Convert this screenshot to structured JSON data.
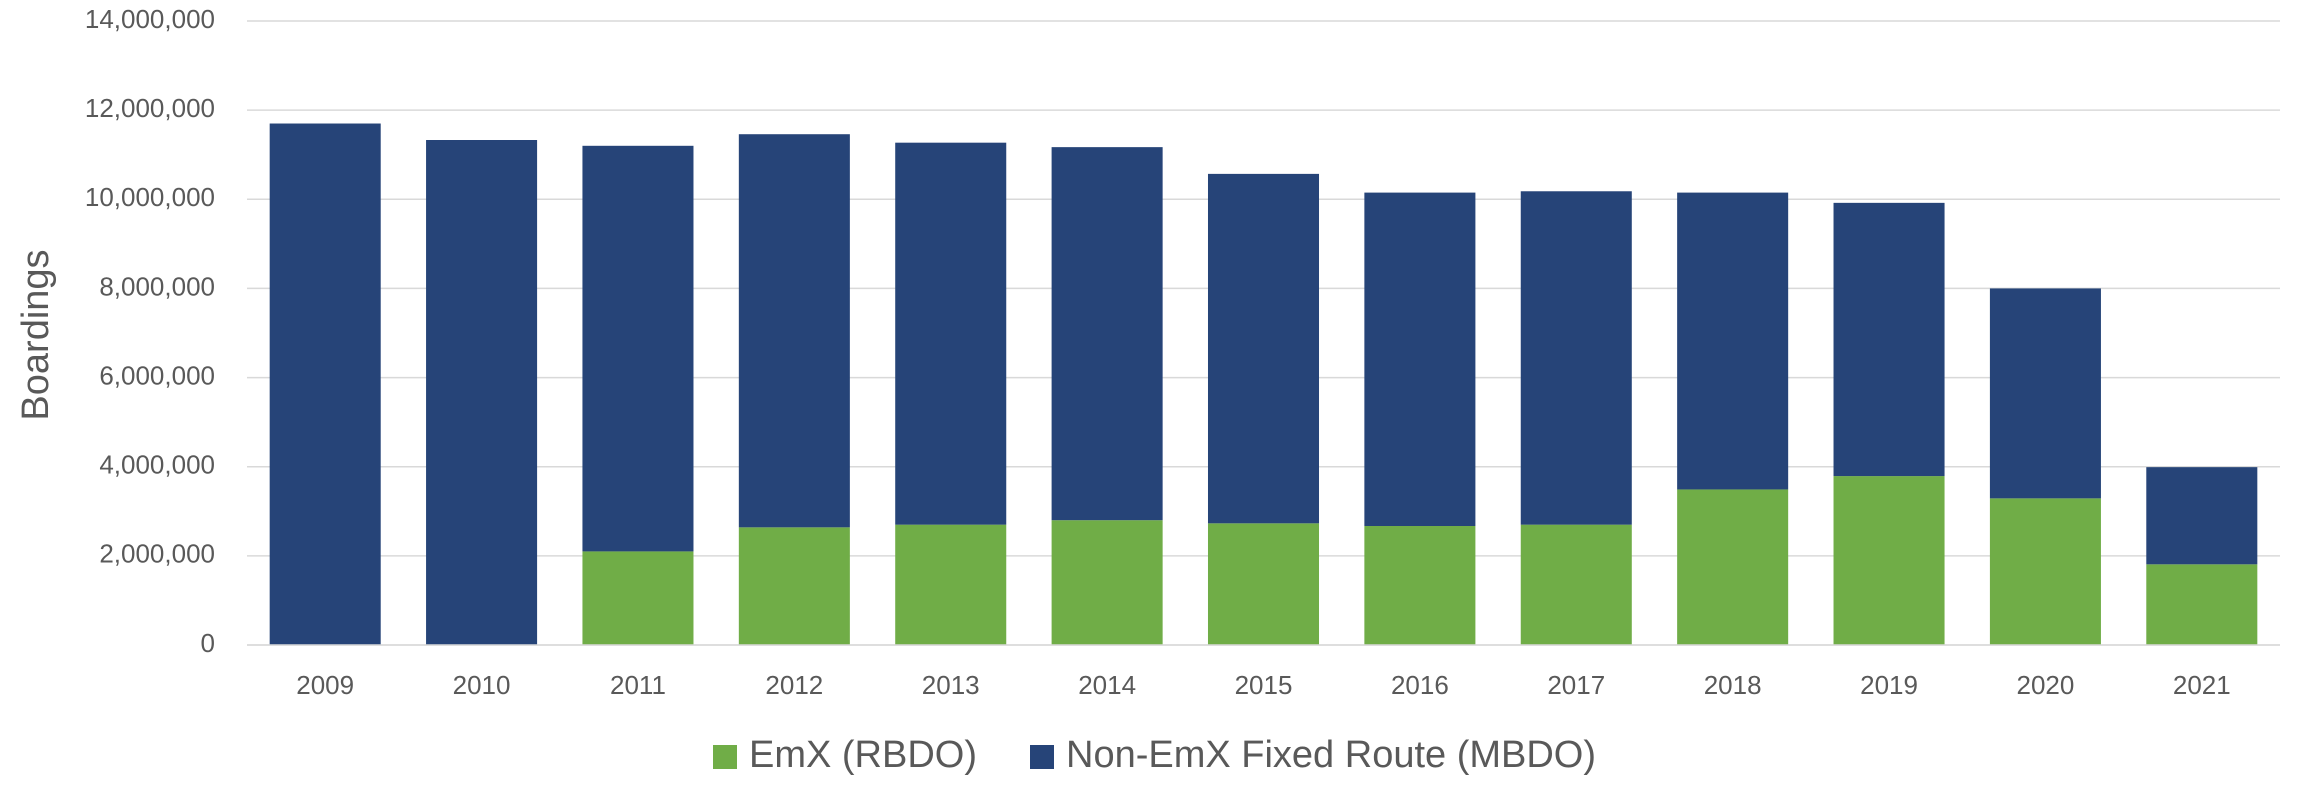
{
  "chart_data": {
    "type": "stacked_bar",
    "y_label": "Boardings",
    "categories": [
      "2009",
      "2010",
      "2011",
      "2012",
      "2013",
      "2014",
      "2015",
      "2016",
      "2017",
      "2018",
      "2019",
      "2020",
      "2021"
    ],
    "series": [
      {
        "name": "EmX (RBDO)",
        "color": "#70ad47",
        "values": [
          0,
          0,
          2100000,
          2640000,
          2700000,
          2800000,
          2730000,
          2670000,
          2700000,
          3490000,
          3790000,
          3290000,
          1810000
        ]
      },
      {
        "name": "Non-EmX Fixed Route (MBDO)",
        "color": "#264478",
        "values": [
          11700000,
          11330000,
          9100000,
          8820000,
          8570000,
          8370000,
          7840000,
          7480000,
          7480000,
          6660000,
          6130000,
          4710000,
          2180000
        ]
      }
    ],
    "ylim": [
      0,
      14000000
    ],
    "yticks": [
      0,
      {
        "value": 2000000,
        "label": "2,000,000"
      },
      {
        "value": 4000000,
        "label": "4,000,000"
      },
      {
        "value": 6000000,
        "label": "6,000,000"
      },
      {
        "value": 8000000,
        "label": "8,000,000"
      },
      {
        "value": 10000000,
        "label": "10,000,000"
      },
      {
        "value": 12000000,
        "label": "12,000,000"
      },
      {
        "value": 14000000,
        "label": "14,000,000"
      }
    ],
    "grid": true,
    "legend": "bottom"
  }
}
